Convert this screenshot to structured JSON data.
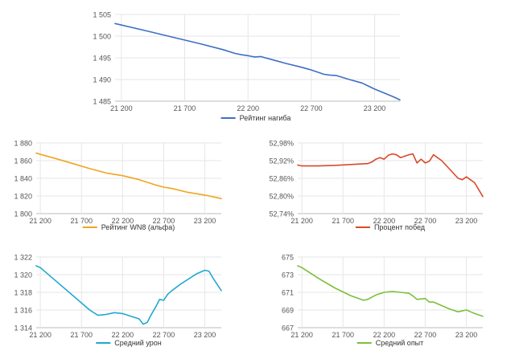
{
  "chart_data": [
    {
      "id": "rating",
      "type": "line",
      "color": "#3e6fc4",
      "legend": "Рейтинг нагиба",
      "x_ticks": [
        "21 200",
        "21 700",
        "22 200",
        "22 700",
        "23 200"
      ],
      "x_tick_values": [
        21200,
        21700,
        22200,
        22700,
        23200
      ],
      "xlim": [
        21150,
        23400
      ],
      "y_ticks": [
        "1 505",
        "1 500",
        "1 495",
        "1 490",
        "1 485"
      ],
      "y_tick_values": [
        1505,
        1500,
        1495,
        1490,
        1485
      ],
      "ylim": [
        1485,
        1505
      ],
      "grid": true,
      "legend_position": "bottom",
      "x": [
        21150,
        21400,
        21600,
        21800,
        22000,
        22100,
        22150,
        22200,
        22250,
        22300,
        22400,
        22500,
        22600,
        22700,
        22800,
        22850,
        22900,
        23000,
        23100,
        23150,
        23200,
        23250,
        23300,
        23350,
        23400
      ],
      "y": [
        1502.9,
        1501.2,
        1499.8,
        1498.4,
        1496.9,
        1496.0,
        1495.7,
        1495.5,
        1495.2,
        1495.3,
        1494.5,
        1493.7,
        1493.0,
        1492.2,
        1491.2,
        1491.0,
        1490.9,
        1490.0,
        1489.2,
        1488.5,
        1487.8,
        1487.2,
        1486.6,
        1486.0,
        1485.3
      ]
    },
    {
      "id": "wn8",
      "type": "line",
      "color": "#f0a520",
      "legend": "Рейтинг WN8 (альфа)",
      "x_ticks": [
        "21 200",
        "21 700",
        "22 200",
        "22 700",
        "23 200"
      ],
      "x_tick_values": [
        21200,
        21700,
        22200,
        22700,
        23200
      ],
      "xlim": [
        21150,
        23400
      ],
      "y_ticks": [
        "1 880",
        "1 860",
        "1 840",
        "1 820",
        "1 800"
      ],
      "y_tick_values": [
        1880,
        1860,
        1840,
        1820,
        1800
      ],
      "ylim": [
        1800,
        1880
      ],
      "grid": true,
      "legend_position": "bottom",
      "x": [
        21150,
        21400,
        21600,
        21800,
        22000,
        22200,
        22400,
        22600,
        22700,
        22800,
        23000,
        23200,
        23400
      ],
      "y": [
        1868.5,
        1862.0,
        1856.5,
        1851.0,
        1846.0,
        1843.0,
        1838.5,
        1832.5,
        1830.0,
        1828.5,
        1824.0,
        1821.0,
        1817.0
      ]
    },
    {
      "id": "winrate",
      "type": "line",
      "color": "#d9492a",
      "legend": "Процент побед",
      "x_ticks": [
        "21 200",
        "21 700",
        "22 200",
        "22 700",
        "23 200"
      ],
      "x_tick_values": [
        21200,
        21700,
        22200,
        22700,
        23200
      ],
      "xlim": [
        21150,
        23400
      ],
      "y_ticks": [
        "52,98%",
        "52,92%",
        "52,86%",
        "52,80%",
        "52,74%"
      ],
      "y_tick_values": [
        52.98,
        52.92,
        52.86,
        52.8,
        52.74
      ],
      "ylim": [
        52.74,
        52.98
      ],
      "grid": true,
      "legend_position": "bottom",
      "x": [
        21150,
        21200,
        21400,
        21600,
        21800,
        22000,
        22050,
        22100,
        22150,
        22200,
        22250,
        22300,
        22350,
        22400,
        22500,
        22550,
        22600,
        22650,
        22700,
        22750,
        22800,
        22900,
        23000,
        23100,
        23150,
        23200,
        23300,
        23400
      ],
      "y": [
        52.905,
        52.902,
        52.902,
        52.904,
        52.907,
        52.91,
        52.915,
        52.925,
        52.93,
        52.925,
        52.938,
        52.943,
        52.94,
        52.93,
        52.94,
        52.943,
        52.912,
        52.925,
        52.912,
        52.918,
        52.94,
        52.92,
        52.89,
        52.86,
        52.855,
        52.865,
        52.845,
        52.798
      ]
    },
    {
      "id": "damage",
      "type": "line",
      "color": "#20a8d0",
      "legend": "Средний урон",
      "x_ticks": [
        "21 200",
        "21 700",
        "22 200",
        "22 700",
        "23 200"
      ],
      "x_tick_values": [
        21200,
        21700,
        22200,
        22700,
        23200
      ],
      "xlim": [
        21150,
        23400
      ],
      "y_ticks": [
        "1 322",
        "1 320",
        "1 318",
        "1 316",
        "1 314"
      ],
      "y_tick_values": [
        1322,
        1320,
        1318,
        1316,
        1314
      ],
      "ylim": [
        1314,
        1322
      ],
      "grid": true,
      "legend_position": "bottom",
      "x": [
        21150,
        21200,
        21400,
        21600,
        21800,
        21900,
        22000,
        22100,
        22200,
        22300,
        22400,
        22450,
        22500,
        22550,
        22600,
        22650,
        22700,
        22750,
        22800,
        22900,
        23000,
        23100,
        23200,
        23250,
        23300,
        23400
      ],
      "y": [
        1321.0,
        1320.8,
        1319.2,
        1317.6,
        1316.0,
        1315.4,
        1315.5,
        1315.7,
        1315.6,
        1315.3,
        1315.0,
        1314.4,
        1314.6,
        1315.5,
        1316.3,
        1317.2,
        1317.1,
        1317.8,
        1318.2,
        1318.9,
        1319.5,
        1320.1,
        1320.5,
        1320.4,
        1319.6,
        1318.2
      ]
    },
    {
      "id": "experience",
      "type": "line",
      "color": "#7cbf3a",
      "legend": "Средний опыт",
      "x_ticks": [
        "21 200",
        "21 700",
        "22 200",
        "22 700",
        "23 200"
      ],
      "x_tick_values": [
        21200,
        21700,
        22200,
        22700,
        23200
      ],
      "xlim": [
        21150,
        23400
      ],
      "y_ticks": [
        "675",
        "673",
        "671",
        "669",
        "667"
      ],
      "y_tick_values": [
        675,
        673,
        671,
        669,
        667
      ],
      "ylim": [
        667,
        675
      ],
      "grid": true,
      "legend_position": "bottom",
      "x": [
        21150,
        21200,
        21400,
        21600,
        21800,
        21950,
        22000,
        22100,
        22200,
        22300,
        22400,
        22500,
        22550,
        22600,
        22700,
        22750,
        22800,
        22900,
        23000,
        23100,
        23200,
        23250,
        23300,
        23400
      ],
      "y": [
        674.0,
        673.8,
        672.6,
        671.5,
        670.6,
        670.1,
        670.2,
        670.7,
        671.0,
        671.1,
        671.0,
        670.9,
        670.6,
        670.2,
        670.3,
        669.9,
        669.9,
        669.5,
        669.1,
        668.8,
        669.0,
        668.8,
        668.6,
        668.3
      ]
    }
  ]
}
